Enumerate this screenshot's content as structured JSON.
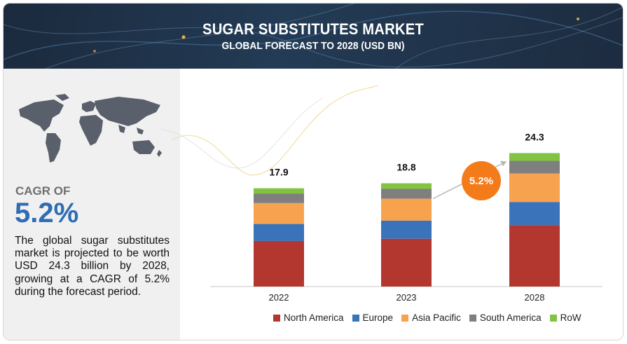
{
  "header": {
    "title": "SUGAR SUBSTITUTES MARKET",
    "subtitle": "GLOBAL FORECAST TO 2028 (USD BN)"
  },
  "left_panel": {
    "cagr_label": "CAGR OF",
    "cagr_value": "5.2%",
    "description": "The global sugar substitutes market is projected to be worth USD 24.3 billion by 2028, growing at a CAGR of 5.2% during the forecast period."
  },
  "chart_data": {
    "type": "bar",
    "stacked": true,
    "categories": [
      "2022",
      "2023",
      "2028"
    ],
    "totals": [
      17.9,
      18.8,
      24.3
    ],
    "series": [
      {
        "name": "North America",
        "color": "#b3372e",
        "values": [
          8.3,
          8.7,
          11.2
        ]
      },
      {
        "name": "Europe",
        "color": "#3a73b9",
        "values": [
          3.1,
          3.3,
          4.2
        ]
      },
      {
        "name": "Asia Pacific",
        "color": "#f6a24e",
        "values": [
          3.8,
          4.0,
          5.2
        ]
      },
      {
        "name": "South America",
        "color": "#7f7f7f",
        "values": [
          1.7,
          1.8,
          2.3
        ]
      },
      {
        "name": "RoW",
        "color": "#82c341",
        "values": [
          1.0,
          1.0,
          1.4
        ]
      }
    ],
    "annotation": {
      "text": "5.2%",
      "color": "#f47b1a"
    },
    "legend_position": "bottom",
    "grid": false
  }
}
